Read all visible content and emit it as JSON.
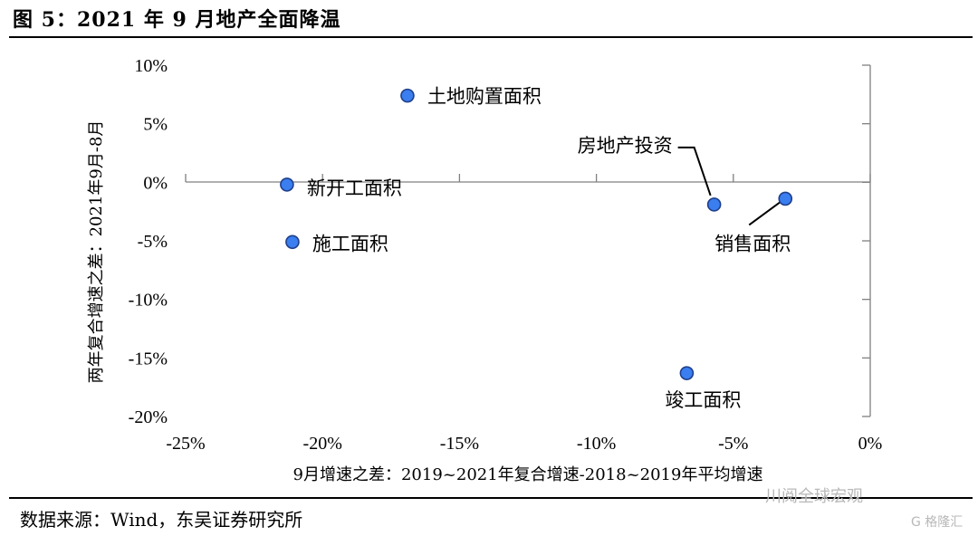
{
  "figure": {
    "title": "图 5：2021 年 9 月地产全面降温",
    "source": "数据来源：Wind，东吴证券研究所",
    "watermark": "川阅全球宏观",
    "watermark2": "G 格隆汇"
  },
  "chart_data": {
    "type": "scatter",
    "xlabel": "9月增速之差：2019~2021年复合增速-2018~2019年平均增速",
    "ylabel": "两年复合增速之差：2021年9月-8月",
    "xlim": [
      -25,
      0
    ],
    "ylim": [
      -20,
      10
    ],
    "x_ticks": [
      "-25%",
      "-20%",
      "-15%",
      "-10%",
      "-5%",
      "0%"
    ],
    "y_ticks": [
      "10%",
      "5%",
      "0%",
      "-5%",
      "-10%",
      "-15%",
      "-20%"
    ],
    "point_color": "#3a7ef0",
    "grid": false,
    "points": [
      {
        "label": "土地购置面积",
        "x": -16.9,
        "y": 7.4
      },
      {
        "label": "新开工面积",
        "x": -21.3,
        "y": -0.2
      },
      {
        "label": "施工面积",
        "x": -21.1,
        "y": -5.1
      },
      {
        "label": "房地产投资",
        "x": -5.7,
        "y": -1.9
      },
      {
        "label": "销售面积",
        "x": -3.1,
        "y": -1.4
      },
      {
        "label": "竣工面积",
        "x": -6.7,
        "y": -16.3
      }
    ]
  }
}
